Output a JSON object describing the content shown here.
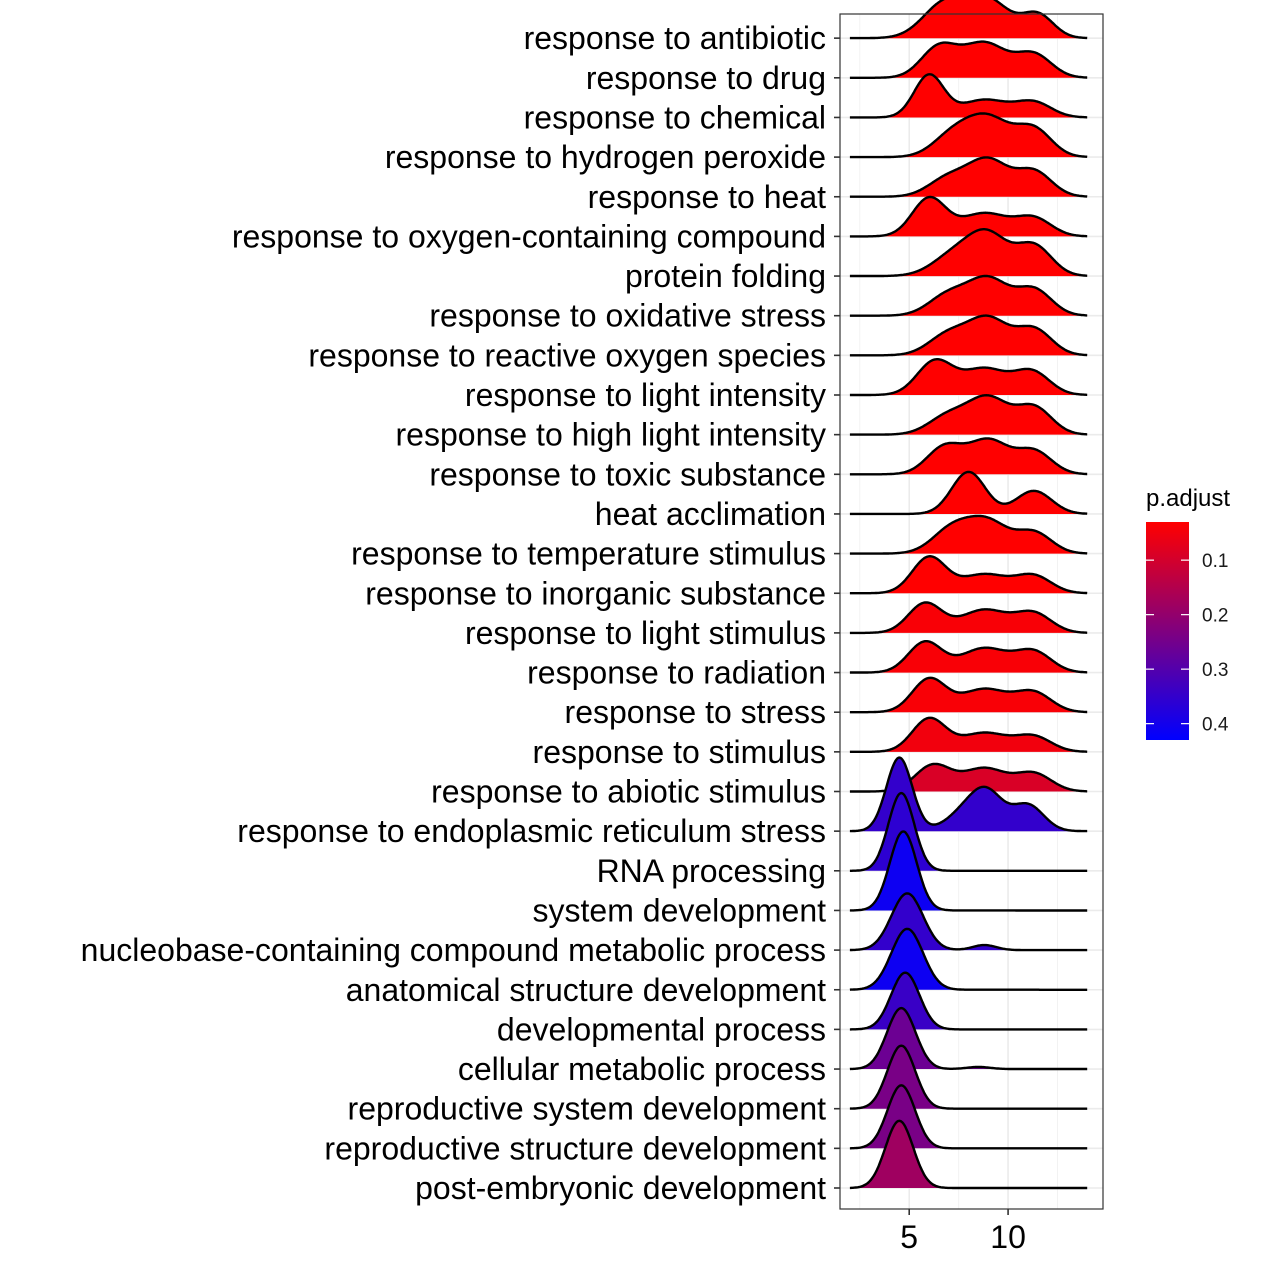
{
  "chart_data": {
    "type": "ridgeline",
    "xlim": [
      1.5,
      14.8
    ],
    "x_ticks": [
      5,
      10
    ],
    "x_tick_labels": [
      "5",
      "10"
    ],
    "grid": true,
    "legend": {
      "title": "p.adjust",
      "position": "right",
      "scale_min": 0.03,
      "scale_max": 0.43,
      "color_low_value": "#ff0000",
      "color_high_value": "#0000ff",
      "ticks": [
        0.1,
        0.2,
        0.3,
        0.4
      ],
      "tick_labels": [
        "0.1",
        "0.2",
        "0.3",
        "0.4"
      ]
    },
    "series": [
      {
        "name": "response to antibiotic",
        "p_adjust": 0.03,
        "range": [
          2.0,
          14.0
        ],
        "peaks": [
          [
            6.8,
            0.82,
            1.1
          ],
          [
            9.0,
            0.88,
            1.1
          ],
          [
            11.5,
            0.55,
            0.8
          ]
        ]
      },
      {
        "name": "response to drug",
        "p_adjust": 0.03,
        "range": [
          2.0,
          14.0
        ],
        "peaks": [
          [
            6.5,
            0.72,
            0.9
          ],
          [
            8.8,
            0.82,
            1.1
          ],
          [
            11.3,
            0.55,
            0.9
          ]
        ]
      },
      {
        "name": "response to chemical",
        "p_adjust": 0.03,
        "range": [
          2.0,
          14.0
        ],
        "peaks": [
          [
            6.0,
            1.0,
            0.75
          ],
          [
            8.8,
            0.42,
            1.2
          ],
          [
            11.3,
            0.35,
            0.9
          ]
        ]
      },
      {
        "name": "response to hydrogen peroxide",
        "p_adjust": 0.03,
        "range": [
          2.0,
          14.0
        ],
        "peaks": [
          [
            7.2,
            0.5,
            1.0
          ],
          [
            9.0,
            0.9,
            1.1
          ],
          [
            11.3,
            0.65,
            0.9
          ]
        ]
      },
      {
        "name": "response to heat",
        "p_adjust": 0.03,
        "range": [
          2.0,
          14.0
        ],
        "peaks": [
          [
            7.0,
            0.45,
            1.0
          ],
          [
            9.0,
            0.85,
            1.0
          ],
          [
            11.3,
            0.6,
            0.9
          ]
        ]
      },
      {
        "name": "response to oxygen-containing compound",
        "p_adjust": 0.03,
        "range": [
          2.0,
          14.0
        ],
        "peaks": [
          [
            6.0,
            0.9,
            0.85
          ],
          [
            8.8,
            0.55,
            1.2
          ],
          [
            11.3,
            0.42,
            0.9
          ]
        ]
      },
      {
        "name": "protein folding",
        "p_adjust": 0.03,
        "range": [
          2.0,
          14.0
        ],
        "peaks": [
          [
            7.3,
            0.5,
            1.1
          ],
          [
            9.0,
            0.92,
            1.0
          ],
          [
            11.3,
            0.72,
            0.9
          ]
        ]
      },
      {
        "name": "response to oxidative stress",
        "p_adjust": 0.03,
        "range": [
          2.0,
          14.0
        ],
        "peaks": [
          [
            7.0,
            0.5,
            1.0
          ],
          [
            9.0,
            0.85,
            1.0
          ],
          [
            11.3,
            0.62,
            0.9
          ]
        ]
      },
      {
        "name": "response to reactive oxygen species",
        "p_adjust": 0.03,
        "range": [
          2.0,
          14.0
        ],
        "peaks": [
          [
            7.0,
            0.5,
            1.0
          ],
          [
            9.0,
            0.85,
            1.0
          ],
          [
            11.3,
            0.62,
            0.9
          ]
        ]
      },
      {
        "name": "response to light intensity",
        "p_adjust": 0.03,
        "range": [
          2.0,
          14.0
        ],
        "peaks": [
          [
            6.3,
            0.8,
            0.9
          ],
          [
            8.8,
            0.62,
            1.1
          ],
          [
            11.2,
            0.55,
            0.9
          ]
        ]
      },
      {
        "name": "response to high light intensity",
        "p_adjust": 0.03,
        "range": [
          2.0,
          14.0
        ],
        "peaks": [
          [
            7.0,
            0.45,
            1.0
          ],
          [
            9.0,
            0.85,
            1.0
          ],
          [
            11.3,
            0.65,
            0.9
          ]
        ]
      },
      {
        "name": "response to toxic substance",
        "p_adjust": 0.03,
        "range": [
          2.0,
          14.0
        ],
        "peaks": [
          [
            6.8,
            0.65,
            0.9
          ],
          [
            9.0,
            0.8,
            1.0
          ],
          [
            11.3,
            0.55,
            0.9
          ]
        ]
      },
      {
        "name": "heat acclimation",
        "p_adjust": 0.03,
        "range": [
          2.0,
          14.0
        ],
        "peaks": [
          [
            8.0,
            1.0,
            0.85
          ],
          [
            11.3,
            0.55,
            0.9
          ]
        ]
      },
      {
        "name": "response to temperature stimulus",
        "p_adjust": 0.03,
        "range": [
          2.0,
          14.0
        ],
        "peaks": [
          [
            7.2,
            0.6,
            1.0
          ],
          [
            9.0,
            0.72,
            1.0
          ],
          [
            11.3,
            0.5,
            0.9
          ]
        ]
      },
      {
        "name": "response to inorganic substance",
        "p_adjust": 0.03,
        "range": [
          2.0,
          14.0
        ],
        "peaks": [
          [
            6.0,
            0.85,
            0.85
          ],
          [
            8.8,
            0.45,
            1.2
          ],
          [
            11.3,
            0.4,
            0.9
          ]
        ]
      },
      {
        "name": "response to light stimulus",
        "p_adjust": 0.04,
        "range": [
          2.0,
          14.0
        ],
        "peaks": [
          [
            5.8,
            0.7,
            0.85
          ],
          [
            8.8,
            0.55,
            1.2
          ],
          [
            11.3,
            0.45,
            0.9
          ]
        ]
      },
      {
        "name": "response to radiation",
        "p_adjust": 0.04,
        "range": [
          2.0,
          14.0
        ],
        "peaks": [
          [
            5.8,
            0.72,
            0.85
          ],
          [
            8.8,
            0.58,
            1.2
          ],
          [
            11.3,
            0.48,
            0.9
          ]
        ]
      },
      {
        "name": "response to stress",
        "p_adjust": 0.04,
        "range": [
          2.0,
          14.0
        ],
        "peaks": [
          [
            6.0,
            0.78,
            0.85
          ],
          [
            8.8,
            0.55,
            1.2
          ],
          [
            11.3,
            0.45,
            0.9
          ]
        ]
      },
      {
        "name": "response to stimulus",
        "p_adjust": 0.05,
        "range": [
          2.0,
          14.0
        ],
        "peaks": [
          [
            6.0,
            0.78,
            0.85
          ],
          [
            8.8,
            0.45,
            1.2
          ],
          [
            11.3,
            0.35,
            0.9
          ]
        ]
      },
      {
        "name": "response to abiotic stimulus",
        "p_adjust": 0.09,
        "range": [
          2.0,
          14.0
        ],
        "peaks": [
          [
            6.2,
            0.62,
            0.9
          ],
          [
            8.8,
            0.55,
            1.1
          ],
          [
            11.3,
            0.42,
            0.9
          ]
        ]
      },
      {
        "name": "response to endoplasmic reticulum stress",
        "p_adjust": 0.35,
        "range": [
          2.0,
          14.0
        ],
        "peaks": [
          [
            4.5,
            1.75,
            0.65
          ],
          [
            8.0,
            0.5,
            1.0
          ],
          [
            9.0,
            0.7,
            0.8
          ],
          [
            11.0,
            0.62,
            0.8
          ]
        ]
      },
      {
        "name": "RNA processing",
        "p_adjust": 0.36,
        "range": [
          2.0,
          14.0
        ],
        "peaks": [
          [
            4.6,
            1.85,
            0.65
          ]
        ]
      },
      {
        "name": "system development",
        "p_adjust": 0.41,
        "range": [
          2.0,
          14.0
        ],
        "peaks": [
          [
            4.7,
            1.88,
            0.68
          ]
        ]
      },
      {
        "name": "nucleobase-containing compound metabolic process",
        "p_adjust": 0.35,
        "range": [
          2.0,
          14.0
        ],
        "peaks": [
          [
            4.9,
            1.35,
            0.8
          ],
          [
            8.8,
            0.12,
            0.6
          ]
        ]
      },
      {
        "name": "anatomical structure development",
        "p_adjust": 0.41,
        "range": [
          2.0,
          14.0
        ],
        "peaks": [
          [
            4.9,
            1.45,
            0.8
          ]
        ]
      },
      {
        "name": "developmental process",
        "p_adjust": 0.34,
        "range": [
          2.0,
          14.0
        ],
        "peaks": [
          [
            4.8,
            1.35,
            0.72
          ]
        ]
      },
      {
        "name": "cellular metabolic process",
        "p_adjust": 0.26,
        "range": [
          2.0,
          14.0
        ],
        "peaks": [
          [
            4.6,
            1.45,
            0.72
          ],
          [
            8.5,
            0.05,
            0.6
          ]
        ]
      },
      {
        "name": "reproductive system development",
        "p_adjust": 0.24,
        "range": [
          2.0,
          14.0
        ],
        "peaks": [
          [
            4.6,
            1.5,
            0.7
          ]
        ]
      },
      {
        "name": "reproductive structure development",
        "p_adjust": 0.24,
        "range": [
          2.0,
          14.0
        ],
        "peaks": [
          [
            4.6,
            1.5,
            0.7
          ]
        ]
      },
      {
        "name": "post-embryonic development",
        "p_adjust": 0.18,
        "range": [
          2.0,
          14.0
        ],
        "peaks": [
          [
            4.5,
            1.6,
            0.7
          ]
        ]
      }
    ]
  }
}
